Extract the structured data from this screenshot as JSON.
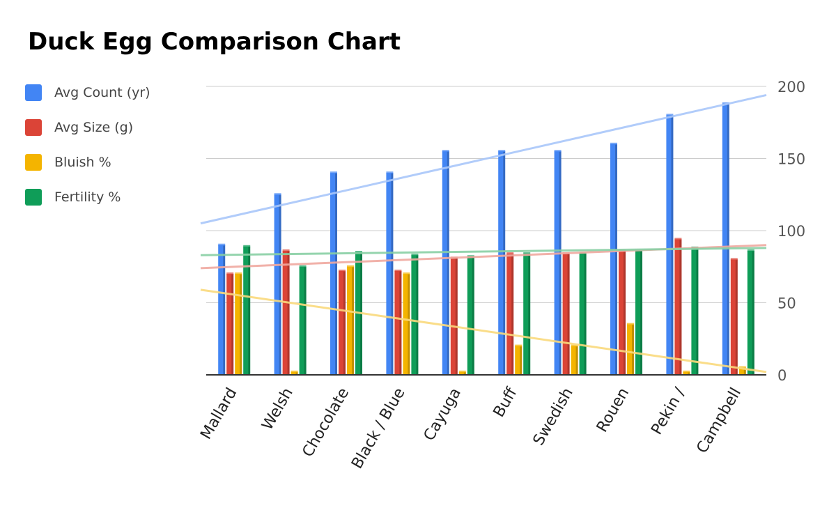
{
  "chart_data": {
    "type": "bar",
    "title": "Duck Egg Comparison Chart",
    "categories": [
      "Mallard",
      "Welsh",
      "Chocolate",
      "Black / Blue",
      "Cayuga",
      "Buff",
      "Swedish",
      "Rouen",
      "Pekin /",
      "Campbell"
    ],
    "series": [
      {
        "name": "Avg Count (yr)",
        "color": "#4285f4",
        "values": [
          90,
          125,
          140,
          140,
          155,
          155,
          155,
          160,
          180,
          188
        ]
      },
      {
        "name": "Avg Size (g)",
        "color": "#db4437",
        "values": [
          70,
          86,
          72,
          72,
          81,
          84,
          84,
          86,
          94,
          80
        ]
      },
      {
        "name": "Bluish %",
        "color": "#f4b400",
        "values": [
          70,
          2,
          75,
          70,
          2,
          20,
          20,
          35,
          2,
          5
        ]
      },
      {
        "name": "Fertility %",
        "color": "#0f9d58",
        "values": [
          89,
          75,
          85,
          83,
          82,
          84,
          84,
          86,
          88,
          86
        ]
      }
    ],
    "trendlines": [
      {
        "series": "Avg Count (yr)",
        "color": "#a8c7fa",
        "start": 105,
        "end": 194
      },
      {
        "series": "Avg Size (g)",
        "color": "#f0a8a0",
        "start": 74,
        "end": 90
      },
      {
        "series": "Bluish %",
        "color": "#fad97c",
        "start": 59,
        "end": 2
      },
      {
        "series": "Fertility %",
        "color": "#88cfa4",
        "start": 83,
        "end": 88
      }
    ],
    "y_axis": {
      "position": "right",
      "ticks": [
        0,
        50,
        100,
        150,
        200
      ],
      "ylim": [
        0,
        200
      ]
    },
    "xlabel": "",
    "ylabel": "",
    "grid": true,
    "legend": "left"
  }
}
